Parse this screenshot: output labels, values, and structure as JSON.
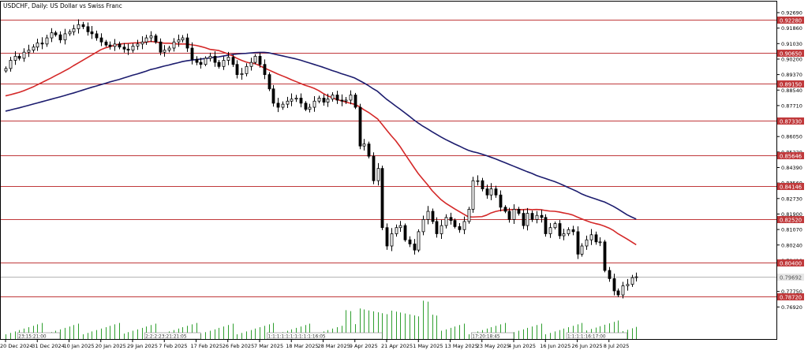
{
  "chart_title": "USDCHF, Daily:  US Dollar vs Swiss Franc",
  "colors": {
    "background": "#ffffff",
    "frame": "#000000",
    "bull_body": "#ffffff",
    "bear_body": "#000000",
    "candle_outline": "#000000",
    "ma_fast": "#d42828",
    "ma_slow": "#1c1c6e",
    "level_line": "#c0393b",
    "level_label_bg": "#c0393b",
    "level_label_text": "#ffffff",
    "volume": "#2e9e2e",
    "current_price_line": "#b4b4b4",
    "current_price_label_bg": "#e6e6e6"
  },
  "chart_data": {
    "type": "candlestick",
    "symbol": "USDCHF",
    "timeframe": "Daily",
    "description": "US Dollar vs Swiss Franc",
    "ylim": [
      0.7664,
      0.9318
    ],
    "y_ticks": [
      "0.92690",
      "0.91860",
      "0.91030",
      "0.90200",
      "0.89370",
      "0.88540",
      "0.87710",
      "0.86880",
      "0.86050",
      "0.85220",
      "0.84390",
      "0.83560",
      "0.82730",
      "0.81900",
      "0.81070",
      "0.80240",
      "0.79410",
      "0.78580",
      "0.77750",
      "0.76920"
    ],
    "x_tick_labels": [
      "20 Dec 2024",
      "31 Dec 2024",
      "10 Jan 2025",
      "20 Jan 2025",
      "29 Jan 2025",
      "7 Feb 2025",
      "17 Feb 2025",
      "26 Feb 2025",
      "7 Mar 2025",
      "18 Mar 2025",
      "28 Mar 2025",
      "9 Apr 2025",
      "21 Apr 2025",
      "1 May 2025",
      "13 May 2025",
      "23 May 2025",
      "4 Jun 2025",
      "16 Jun 2025",
      "26 Jun 2025",
      "8 Jul 2025"
    ],
    "horizontal_levels": [
      {
        "value": 0.9228,
        "label": "0.92280"
      },
      {
        "value": 0.9065,
        "label": "0.90650"
      },
      {
        "value": 0.8915,
        "label": "0.89150"
      },
      {
        "value": 0.8733,
        "label": "0.87330"
      },
      {
        "value": 0.85646,
        "label": "0.85646"
      },
      {
        "value": 0.84146,
        "label": "0.84146"
      },
      {
        "value": 0.8252,
        "label": "0.82520"
      },
      {
        "value": 0.804,
        "label": "0.80400"
      },
      {
        "value": 0.7872,
        "label": "0.78720"
      }
    ],
    "current_price": {
      "value": 0.79692,
      "label": "0.79692"
    },
    "closes": [
      0.899,
      0.903,
      0.905,
      0.904,
      0.907,
      0.908,
      0.9095,
      0.9115,
      0.911,
      0.914,
      0.9165,
      0.9155,
      0.913,
      0.916,
      0.917,
      0.9185,
      0.9205,
      0.9195,
      0.917,
      0.916,
      0.914,
      0.912,
      0.9105,
      0.9098,
      0.911,
      0.9095,
      0.9085,
      0.908,
      0.91,
      0.911,
      0.912,
      0.914,
      0.915,
      0.912,
      0.907,
      0.908,
      0.909,
      0.912,
      0.913,
      0.914,
      0.909,
      0.9035,
      0.902,
      0.901,
      0.904,
      0.905,
      0.902,
      0.9,
      0.903,
      0.9045,
      0.901,
      0.896,
      0.8965,
      0.9,
      0.902,
      0.905,
      0.901,
      0.896,
      0.889,
      0.882,
      0.88,
      0.8815,
      0.883,
      0.884,
      0.8845,
      0.882,
      0.879,
      0.88,
      0.883,
      0.8845,
      0.8825,
      0.884,
      0.886,
      0.8835,
      0.883,
      0.8835,
      0.886,
      0.88,
      0.861,
      0.862,
      0.856,
      0.844,
      0.85,
      0.821,
      0.812,
      0.818,
      0.821,
      0.822,
      0.815,
      0.813,
      0.81,
      0.819,
      0.825,
      0.829,
      0.824,
      0.818,
      0.822,
      0.826,
      0.8245,
      0.8215,
      0.82,
      0.824,
      0.83,
      0.844,
      0.844,
      0.84,
      0.837,
      0.84,
      0.837,
      0.831,
      0.829,
      0.825,
      0.83,
      0.828,
      0.822,
      0.828,
      0.825,
      0.827,
      0.826,
      0.818,
      0.821,
      0.823,
      0.817,
      0.818,
      0.82,
      0.819,
      0.808,
      0.812,
      0.815,
      0.8175,
      0.814,
      0.814,
      0.8,
      0.796,
      0.79,
      0.788,
      0.7925,
      0.7932,
      0.7965,
      0.7969
    ],
    "ma_fast_values": [
      0.8856,
      0.8861,
      0.8867,
      0.8873,
      0.8881,
      0.889,
      0.8899,
      0.891,
      0.8921,
      0.8932,
      0.8943,
      0.8955,
      0.8966,
      0.8978,
      0.899,
      0.9004,
      0.9017,
      0.903,
      0.9043,
      0.9056,
      0.9069,
      0.9082,
      0.9091,
      0.9097,
      0.9104,
      0.9109,
      0.9112,
      0.9113,
      0.9115,
      0.9116,
      0.9117,
      0.9119,
      0.9123,
      0.912,
      0.9117,
      0.9114,
      0.9114,
      0.9112,
      0.911,
      0.911,
      0.911,
      0.9106,
      0.9103,
      0.9098,
      0.9092,
      0.9084,
      0.9081,
      0.9078,
      0.907,
      0.9062,
      0.9052,
      0.904,
      0.903,
      0.9022,
      0.9016,
      0.9014,
      0.9004,
      0.8993,
      0.8983,
      0.8973,
      0.8963,
      0.8954,
      0.8945,
      0.8935,
      0.8926,
      0.8917,
      0.8908,
      0.8901,
      0.8893,
      0.8882,
      0.8868,
      0.8856,
      0.8847,
      0.8838,
      0.8832,
      0.8825,
      0.882,
      0.8814,
      0.8803,
      0.8788,
      0.8775,
      0.8759,
      0.8743,
      0.8716,
      0.8688,
      0.8661,
      0.8636,
      0.8606,
      0.8572,
      0.8539,
      0.8506,
      0.8474,
      0.8447,
      0.8421,
      0.8392,
      0.8369,
      0.8347,
      0.833,
      0.8316,
      0.8302,
      0.8289,
      0.8276,
      0.8263,
      0.8262,
      0.8263,
      0.8264,
      0.8271,
      0.8282,
      0.8289,
      0.8294,
      0.8297,
      0.8298,
      0.8299,
      0.8299,
      0.8298,
      0.83,
      0.8298,
      0.8299,
      0.8298,
      0.8294,
      0.8291,
      0.829,
      0.8287,
      0.8282,
      0.8278,
      0.8272,
      0.8262,
      0.8253,
      0.8244,
      0.8236,
      0.823,
      0.8225,
      0.8217,
      0.8208,
      0.8196,
      0.818,
      0.8167,
      0.8154,
      0.814,
      0.8126
    ],
    "ma_slow_values": [
      0.8781,
      0.8786,
      0.8792,
      0.8797,
      0.8803,
      0.8809,
      0.8815,
      0.8821,
      0.8827,
      0.8833,
      0.8839,
      0.8845,
      0.8851,
      0.8857,
      0.8864,
      0.887,
      0.8877,
      0.8884,
      0.8891,
      0.8898,
      0.8904,
      0.8911,
      0.8917,
      0.8924,
      0.893,
      0.8936,
      0.8943,
      0.895,
      0.8957,
      0.8963,
      0.897,
      0.8977,
      0.8985,
      0.899,
      0.8996,
      0.9002,
      0.9007,
      0.9013,
      0.9018,
      0.9024,
      0.9028,
      0.9031,
      0.9034,
      0.9036,
      0.9039,
      0.9042,
      0.9045,
      0.9047,
      0.9051,
      0.9055,
      0.9059,
      0.9061,
      0.9063,
      0.9064,
      0.9066,
      0.9068,
      0.9069,
      0.9069,
      0.9067,
      0.9062,
      0.9057,
      0.9052,
      0.9047,
      0.9042,
      0.9037,
      0.9031,
      0.9024,
      0.9017,
      0.901,
      0.9003,
      0.8996,
      0.8988,
      0.898,
      0.8973,
      0.8965,
      0.8958,
      0.8951,
      0.8943,
      0.8931,
      0.8919,
      0.8906,
      0.8891,
      0.8878,
      0.8858,
      0.8839,
      0.8823,
      0.8806,
      0.879,
      0.8773,
      0.8756,
      0.8738,
      0.8722,
      0.8707,
      0.8694,
      0.868,
      0.8667,
      0.8654,
      0.8642,
      0.8631,
      0.862,
      0.861,
      0.8599,
      0.8589,
      0.8582,
      0.8577,
      0.857,
      0.8563,
      0.8555,
      0.8547,
      0.8538,
      0.8529,
      0.852,
      0.8511,
      0.8502,
      0.8493,
      0.8484,
      0.8476,
      0.8466,
      0.8458,
      0.8451,
      0.8443,
      0.8436,
      0.8427,
      0.8417,
      0.8407,
      0.8397,
      0.8387,
      0.8375,
      0.8366,
      0.8358,
      0.8351,
      0.8343,
      0.8336,
      0.8325,
      0.8314,
      0.8301,
      0.8287,
      0.8273,
      0.8262,
      0.8252
    ],
    "volume_clusters": [
      {
        "start": 3,
        "len": 9,
        "label": "23:15:21:00"
      },
      {
        "start": 31,
        "len": 12,
        "label": "2:2:2:23:21:21:05"
      },
      {
        "start": 58,
        "len": 25,
        "label": "1:1:1:1:1:1:1:1:1:1:16:05"
      },
      {
        "start": 103,
        "len": 9,
        "label": "17:20:18:45"
      },
      {
        "start": 124,
        "len": 13,
        "label": "1:1:1:1:16:17:00"
      }
    ]
  }
}
